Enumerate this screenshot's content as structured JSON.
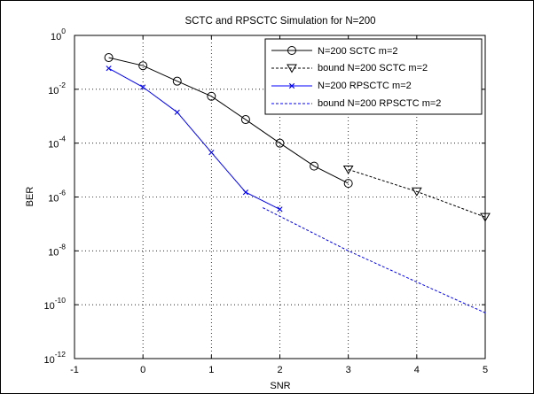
{
  "chart_data": {
    "type": "line",
    "title": "SCTC and RPSCTC Simulation for N=200",
    "xlabel": "SNR",
    "ylabel": "BER",
    "xlim": [
      -1,
      5
    ],
    "ylim_log10": [
      -12,
      0
    ],
    "yscale": "log",
    "grid": true,
    "legend_placement": "top-right",
    "x_ticks": [
      "-1",
      "0",
      "1",
      "2",
      "3",
      "4",
      "5"
    ],
    "y_ticks": [
      {
        "base": "10",
        "exp": "0"
      },
      {
        "base": "10",
        "exp": "-2"
      },
      {
        "base": "10",
        "exp": "-4"
      },
      {
        "base": "10",
        "exp": "-6"
      },
      {
        "base": "10",
        "exp": "-8"
      },
      {
        "base": "10",
        "exp": "-10"
      },
      {
        "base": "10",
        "exp": "-12"
      }
    ],
    "series": [
      {
        "name": "N=200 SCTC m=2",
        "color": "#000000",
        "line": "solid",
        "marker": "circle",
        "x": [
          -0.5,
          0,
          0.5,
          1,
          1.5,
          2,
          2.5,
          3
        ],
        "y": [
          0.15,
          0.075,
          0.02,
          0.0055,
          0.00075,
          0.0001,
          1.4e-05,
          3.2e-06
        ]
      },
      {
        "name": "bound N=200 SCTC m=2",
        "color": "#000000",
        "line": "dashed",
        "marker": "triangle-down",
        "x": [
          3,
          4,
          5
        ],
        "y": [
          1.05e-05,
          1.6e-06,
          1.8e-07
        ]
      },
      {
        "name": "N=200 RPSCTC m=2",
        "color": "#0000ff",
        "line": "solid",
        "marker": "x",
        "x": [
          -0.5,
          0,
          0.5,
          1,
          1.5,
          2
        ],
        "y": [
          0.06,
          0.012,
          0.0014,
          4.5e-05,
          1.5e-06,
          3.5e-07
        ]
      },
      {
        "name": "bound N=200 RPSCTC m=2",
        "color": "#0000ff",
        "line": "dashed",
        "marker": "none",
        "x": [
          1.75,
          3,
          4,
          5
        ],
        "y": [
          4e-07,
          1e-08,
          7e-10,
          5e-11
        ]
      }
    ]
  }
}
